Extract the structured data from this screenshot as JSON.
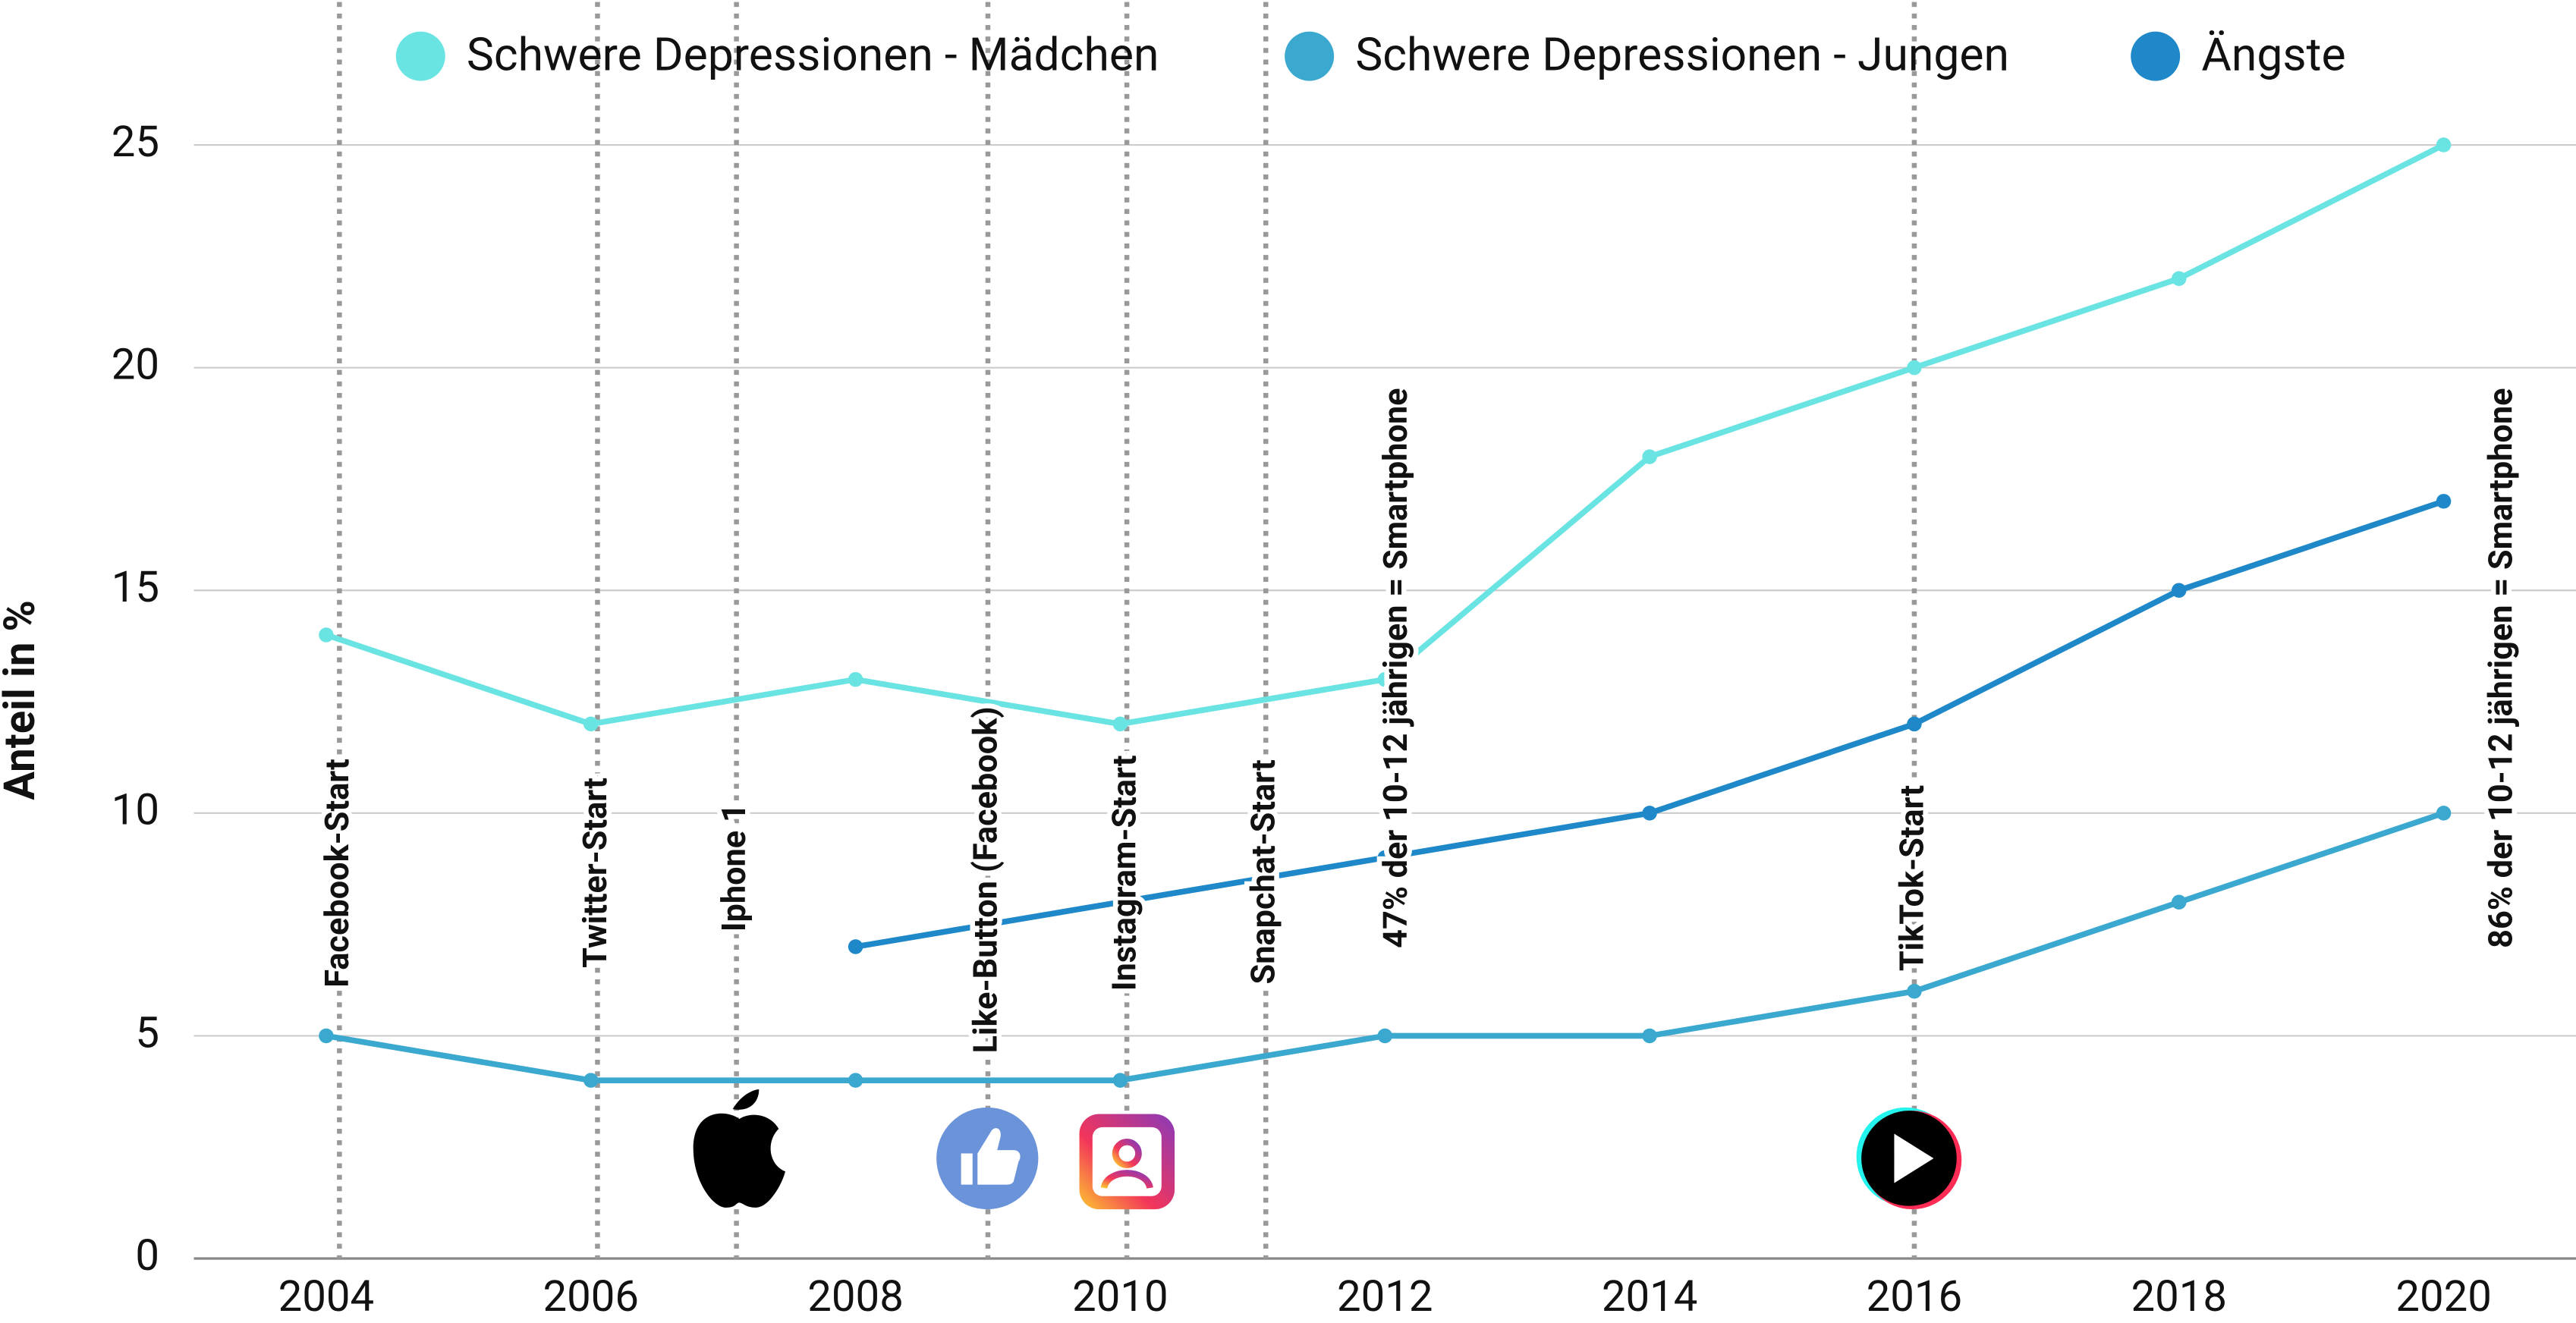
{
  "chart_data": {
    "type": "line",
    "y_label": "Anteil in %",
    "x": [
      2004,
      2006,
      2008,
      2010,
      2012,
      2014,
      2016,
      2018,
      2020
    ],
    "xlim": [
      2003,
      2021
    ],
    "xticks": [
      2004,
      2006,
      2008,
      2010,
      2012,
      2014,
      2016,
      2018,
      2020
    ],
    "ylim": [
      0,
      25
    ],
    "yticks": [
      0,
      5,
      10,
      15,
      20,
      25
    ],
    "grid": true,
    "legend": "top",
    "series": [
      {
        "name": "Schwere Depressionen - Mädchen",
        "color": "#6ae3e3",
        "values": [
          14,
          12,
          13,
          12,
          13,
          18,
          20,
          22,
          25
        ]
      },
      {
        "name": "Schwere Depressionen - Jungen",
        "color": "#3aa8cf",
        "values": [
          5,
          4,
          4,
          4,
          5,
          5,
          6,
          8,
          10
        ]
      },
      {
        "name": "Ängste",
        "color": "#1e88c9",
        "values": [
          null,
          null,
          7,
          8,
          9,
          10,
          12,
          15,
          17
        ]
      }
    ],
    "annotations": [
      {
        "x": 2004.1,
        "label": "Facebook-Start",
        "line": true
      },
      {
        "x": 2006.05,
        "label": "Twitter-Start",
        "line": true
      },
      {
        "x": 2007.1,
        "label": "Iphone 1",
        "line": true
      },
      {
        "x": 2009.0,
        "label": "Like-Button (Facebook)",
        "line": true
      },
      {
        "x": 2010.05,
        "label": "Instagram-Start",
        "line": true
      },
      {
        "x": 2011.1,
        "label": "Snapchat-Start",
        "line": true
      },
      {
        "x": 2012.1,
        "label": "47% der 10-12 jährigen = Smartphone",
        "line": false
      },
      {
        "x": 2016.0,
        "label": "TikTok-Start",
        "line": true
      },
      {
        "x": 2020.45,
        "label": "86% der 10-12 jährigen = Smartphone",
        "line": false
      }
    ]
  }
}
